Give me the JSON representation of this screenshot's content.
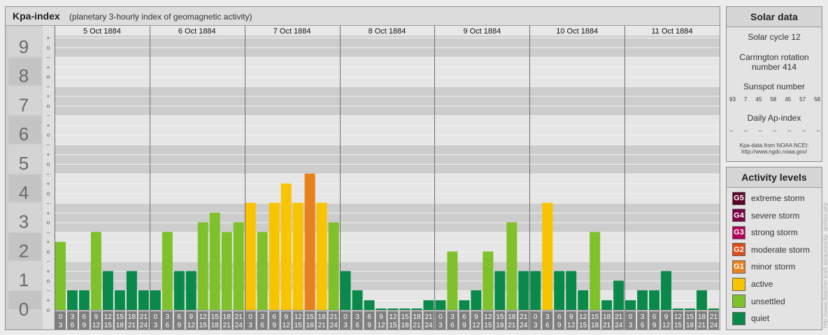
{
  "header": {
    "title": "Kpa-index",
    "subtitle": "(planetary 3-hourly index of geomagnetic activity)"
  },
  "solar": {
    "heading": "Solar data",
    "cycle": "Solar cycle 12",
    "carrington_line1": "Carrington rotation",
    "carrington_line2": "number 414",
    "sunspot_label": "Sunspot number",
    "sunspots": [
      "93",
      "7",
      "45",
      "58",
      "45",
      "57",
      "58"
    ],
    "ap_label": "Daily Ap-index",
    "ap_values": [
      "--",
      "--",
      "--",
      "--",
      "--",
      "--",
      "--"
    ],
    "source_line1": "Kpa-data from NOAA NCEI:",
    "source_line2": "http://www.ngdc.noaa.gov/"
  },
  "levels": {
    "heading": "Activity levels",
    "items": [
      {
        "code": "G5",
        "label": "extreme storm",
        "color": "#5c0028"
      },
      {
        "code": "G4",
        "label": "severe storm",
        "color": "#7a0045"
      },
      {
        "code": "G3",
        "label": "strong storm",
        "color": "#b2005a"
      },
      {
        "code": "G2",
        "label": "moderate storm",
        "color": "#e04a14"
      },
      {
        "code": "G1",
        "label": "minor storm",
        "color": "#e8801c"
      },
      {
        "code": "",
        "label": "active",
        "color": "#f8c400"
      },
      {
        "code": "",
        "label": "unsettled",
        "color": "#7fc12a"
      },
      {
        "code": "",
        "label": "quiet",
        "color": "#0a8a4a"
      }
    ]
  },
  "watermark": "http://www.fleischer-kraft.de/aurora/kp_archive.php",
  "chart_data": {
    "type": "bar",
    "title": "Kpa-index",
    "y_ticks": [
      "0",
      "1",
      "2",
      "3",
      "4",
      "5",
      "6",
      "7",
      "8",
      "9"
    ],
    "sub_ticks": [
      "o",
      "+",
      "–"
    ],
    "ylim": [
      0,
      9.33
    ],
    "days": [
      "5 Oct 1884",
      "6 Oct 1884",
      "7 Oct 1884",
      "8 Oct 1884",
      "9 Oct 1884",
      "10 Oct 1884",
      "11 Oct 1884"
    ],
    "interval_start": [
      "0",
      "3",
      "6",
      "9",
      "12",
      "15",
      "18",
      "21"
    ],
    "interval_end": [
      "3",
      "6",
      "9",
      "12",
      "15",
      "18",
      "21",
      "24"
    ],
    "colors": {
      "quiet": "#0a8a4a",
      "unsettled": "#7fc12a",
      "active": "#f8c400",
      "g1": "#e8801c"
    },
    "values": [
      2.33,
      0.67,
      0.67,
      2.67,
      1.33,
      0.67,
      1.33,
      0.67,
      0.67,
      2.67,
      1.33,
      1.33,
      3.0,
      3.33,
      2.67,
      3.0,
      3.67,
      2.67,
      3.67,
      4.33,
      3.67,
      4.67,
      3.67,
      3.0,
      1.33,
      0.67,
      0.33,
      0.0,
      0.0,
      0.0,
      0.0,
      0.33,
      0.33,
      2.0,
      0.33,
      0.67,
      2.0,
      1.33,
      3.0,
      1.33,
      1.33,
      3.67,
      1.33,
      1.33,
      0.67,
      2.67,
      0.33,
      1.0,
      0.33,
      0.67,
      0.67,
      1.33,
      0.0,
      0.0,
      0.67,
      0.0
    ]
  }
}
